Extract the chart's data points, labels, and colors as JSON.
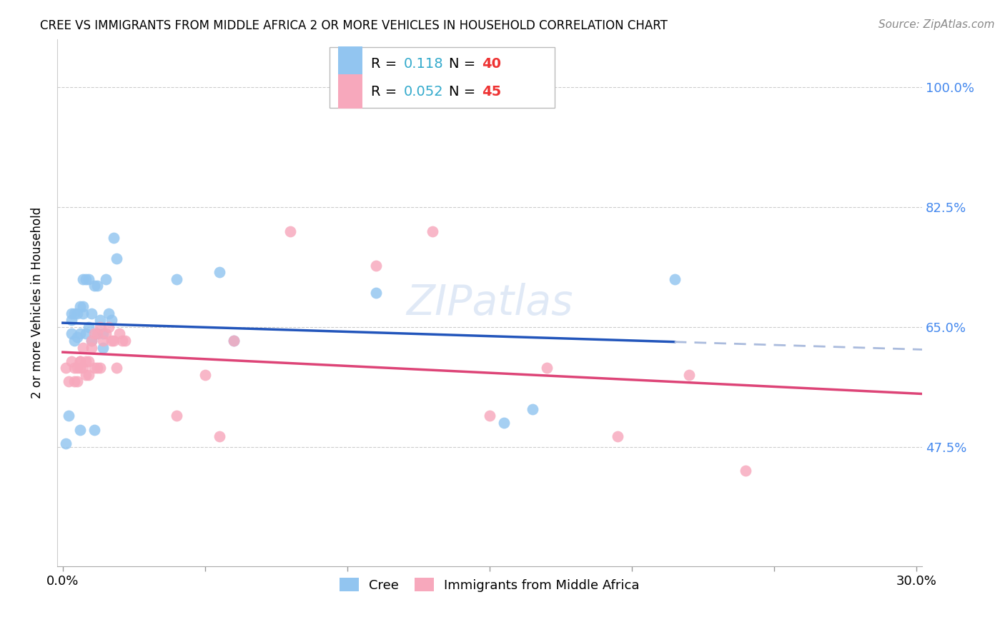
{
  "title": "CREE VS IMMIGRANTS FROM MIDDLE AFRICA 2 OR MORE VEHICLES IN HOUSEHOLD CORRELATION CHART",
  "source": "Source: ZipAtlas.com",
  "ylabel": "2 or more Vehicles in Household",
  "xlim": [
    -0.002,
    0.302
  ],
  "ylim": [
    0.3,
    1.07
  ],
  "xtick_positions": [
    0.0,
    0.05,
    0.1,
    0.15,
    0.2,
    0.25,
    0.3
  ],
  "xticklabels": [
    "0.0%",
    "",
    "",
    "",
    "",
    "",
    "30.0%"
  ],
  "ytick_values": [
    0.475,
    0.65,
    0.825,
    1.0
  ],
  "ytick_labels": [
    "47.5%",
    "65.0%",
    "82.5%",
    "100.0%"
  ],
  "legend_R1": "0.118",
  "legend_N1": "40",
  "legend_R2": "0.052",
  "legend_N2": "45",
  "color_cree": "#92C5F0",
  "color_immigrants": "#F7A8BC",
  "color_line_cree": "#2255BB",
  "color_line_cree_dashed": "#AABBDD",
  "color_line_immigrants": "#DD4477",
  "color_axis_right": "#4488EE",
  "color_legend_R": "#33AACC",
  "color_legend_N": "#EE3333",
  "background_color": "#FFFFFF",
  "cree_x": [
    0.001,
    0.002,
    0.003,
    0.003,
    0.003,
    0.004,
    0.004,
    0.005,
    0.005,
    0.006,
    0.006,
    0.006,
    0.007,
    0.007,
    0.007,
    0.008,
    0.008,
    0.009,
    0.009,
    0.01,
    0.01,
    0.011,
    0.011,
    0.012,
    0.012,
    0.013,
    0.014,
    0.014,
    0.015,
    0.016,
    0.017,
    0.018,
    0.019,
    0.04,
    0.055,
    0.06,
    0.11,
    0.155,
    0.165,
    0.215
  ],
  "cree_y": [
    0.48,
    0.52,
    0.64,
    0.66,
    0.67,
    0.63,
    0.67,
    0.635,
    0.67,
    0.5,
    0.64,
    0.68,
    0.67,
    0.68,
    0.72,
    0.64,
    0.72,
    0.65,
    0.72,
    0.63,
    0.67,
    0.71,
    0.5,
    0.71,
    0.64,
    0.66,
    0.64,
    0.62,
    0.72,
    0.67,
    0.66,
    0.78,
    0.75,
    0.72,
    0.73,
    0.63,
    0.7,
    0.51,
    0.53,
    0.72
  ],
  "cree_sizes": [
    120,
    120,
    120,
    120,
    120,
    120,
    120,
    120,
    120,
    120,
    120,
    120,
    120,
    120,
    120,
    120,
    120,
    120,
    120,
    120,
    120,
    120,
    120,
    120,
    120,
    120,
    120,
    120,
    120,
    120,
    120,
    120,
    120,
    120,
    120,
    120,
    200,
    120,
    120,
    120
  ],
  "immigrants_x": [
    0.001,
    0.002,
    0.003,
    0.004,
    0.004,
    0.005,
    0.005,
    0.006,
    0.006,
    0.006,
    0.007,
    0.007,
    0.008,
    0.008,
    0.009,
    0.009,
    0.01,
    0.01,
    0.011,
    0.011,
    0.012,
    0.012,
    0.013,
    0.013,
    0.014,
    0.015,
    0.016,
    0.017,
    0.018,
    0.019,
    0.02,
    0.021,
    0.022,
    0.04,
    0.05,
    0.055,
    0.06,
    0.08,
    0.11,
    0.13,
    0.15,
    0.17,
    0.195,
    0.22,
    0.24
  ],
  "immigrants_y": [
    0.59,
    0.57,
    0.6,
    0.57,
    0.59,
    0.57,
    0.59,
    0.59,
    0.6,
    0.6,
    0.62,
    0.59,
    0.58,
    0.6,
    0.58,
    0.6,
    0.62,
    0.63,
    0.64,
    0.59,
    0.64,
    0.59,
    0.59,
    0.65,
    0.63,
    0.64,
    0.65,
    0.63,
    0.63,
    0.59,
    0.64,
    0.63,
    0.63,
    0.52,
    0.58,
    0.49,
    0.63,
    0.79,
    0.74,
    0.79,
    0.52,
    0.59,
    0.49,
    0.58,
    0.44
  ],
  "immigrants_sizes": [
    200,
    120,
    120,
    120,
    120,
    120,
    120,
    120,
    120,
    120,
    120,
    120,
    120,
    120,
    120,
    120,
    120,
    120,
    120,
    120,
    120,
    120,
    120,
    120,
    120,
    120,
    120,
    120,
    120,
    120,
    120,
    120,
    120,
    120,
    120,
    120,
    120,
    120,
    120,
    120,
    120,
    120,
    120,
    120,
    120
  ],
  "cree_line_x_start": 0.0,
  "cree_line_x_solid_end": 0.215,
  "cree_line_x_end": 0.302,
  "imm_line_x_start": 0.0,
  "imm_line_x_end": 0.302
}
